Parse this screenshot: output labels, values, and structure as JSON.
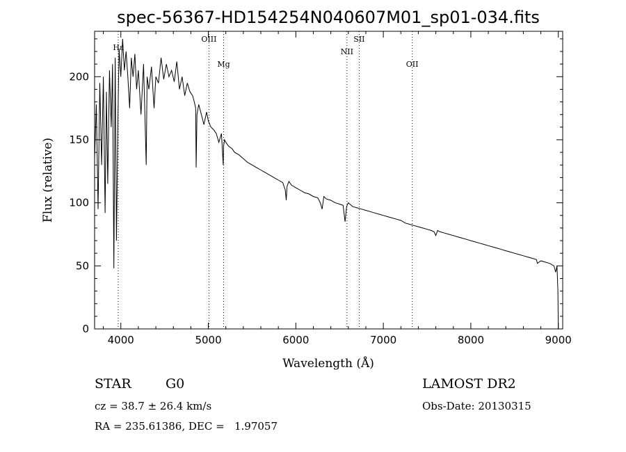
{
  "chart_data": {
    "type": "line",
    "title": "spec-56367-HD154254N040607M01_sp01-034.fits",
    "xlabel": "Wavelength (Å)",
    "ylabel": "Flux (relative)",
    "xlim": [
      3700,
      9050
    ],
    "ylim": [
      0,
      236
    ],
    "x_ticks": [
      4000,
      5000,
      6000,
      7000,
      8000,
      9000
    ],
    "y_ticks": [
      0,
      50,
      100,
      150,
      200
    ],
    "grid": false,
    "series": [
      {
        "x": [
          3700,
          3720,
          3740,
          3760,
          3780,
          3800,
          3820,
          3835,
          3850,
          3870,
          3890,
          3905,
          3920,
          3935,
          3950,
          3968,
          3980,
          4000,
          4020,
          4040,
          4060,
          4080,
          4101,
          4120,
          4140,
          4160,
          4180,
          4200,
          4230,
          4260,
          4290,
          4300,
          4320,
          4350,
          4380,
          4400,
          4430,
          4460,
          4490,
          4520,
          4550,
          4580,
          4610,
          4640,
          4670,
          4700,
          4730,
          4760,
          4790,
          4820,
          4840,
          4855,
          4861,
          4870,
          4890,
          4920,
          4950,
          4980,
          5000,
          5030,
          5060,
          5090,
          5120,
          5150,
          5170,
          5175,
          5185,
          5200,
          5230,
          5270,
          5300,
          5350,
          5400,
          5450,
          5500,
          5550,
          5600,
          5650,
          5700,
          5750,
          5800,
          5850,
          5880,
          5890,
          5900,
          5920,
          5950,
          6000,
          6050,
          6100,
          6150,
          6200,
          6250,
          6280,
          6300,
          6320,
          6350,
          6400,
          6450,
          6500,
          6540,
          6563,
          6580,
          6600,
          6650,
          6700,
          6750,
          6800,
          6850,
          6900,
          6950,
          7000,
          7050,
          7100,
          7150,
          7200,
          7250,
          7300,
          7350,
          7400,
          7450,
          7500,
          7550,
          7580,
          7600,
          7620,
          7650,
          7700,
          7750,
          7800,
          7850,
          7900,
          7950,
          8000,
          8050,
          8100,
          8150,
          8200,
          8250,
          8300,
          8350,
          8400,
          8450,
          8500,
          8550,
          8600,
          8650,
          8700,
          8750,
          8760,
          8800,
          8850,
          8900,
          8950,
          8970,
          8985,
          8995,
          9000
        ],
        "y": [
          135,
          178,
          95,
          195,
          130,
          200,
          92,
          188,
          115,
          205,
          160,
          210,
          48,
          215,
          70,
          172,
          222,
          200,
          230,
          205,
          220,
          200,
          175,
          215,
          200,
          218,
          190,
          205,
          170,
          210,
          130,
          200,
          190,
          208,
          175,
          200,
          195,
          215,
          198,
          210,
          200,
          205,
          196,
          212,
          190,
          200,
          185,
          195,
          188,
          185,
          180,
          175,
          128,
          170,
          178,
          170,
          162,
          172,
          165,
          160,
          158,
          155,
          148,
          155,
          130,
          145,
          150,
          148,
          145,
          143,
          140,
          138,
          135,
          132,
          130,
          128,
          126,
          124,
          122,
          120,
          118,
          116,
          110,
          102,
          113,
          117,
          114,
          112,
          110,
          108,
          107,
          105,
          104,
          100,
          95,
          105,
          103,
          102,
          100,
          99,
          98,
          85,
          97,
          100,
          97,
          96,
          95,
          94,
          93,
          92,
          91,
          90,
          89,
          88,
          87,
          86,
          84,
          83,
          82,
          81,
          80,
          79,
          78,
          77,
          74,
          78,
          77,
          76,
          75,
          74,
          73,
          72,
          71,
          70,
          69,
          68,
          67,
          66,
          65,
          64,
          63,
          62,
          61,
          60,
          59,
          58,
          57,
          56,
          55,
          52,
          54,
          53,
          52,
          50,
          45,
          50,
          30,
          0
        ]
      }
    ],
    "annotations": [
      {
        "label": "Hε",
        "x": 3970
      },
      {
        "label": "OIII",
        "x": 5007
      },
      {
        "label": "Mg",
        "x": 5175
      },
      {
        "label": "NII",
        "x": 6584
      },
      {
        "label": "OII",
        "x": 7330
      },
      {
        "label": "SII",
        "x": 6724
      }
    ]
  },
  "info": {
    "class_label": "STAR",
    "subclass": "G0",
    "survey": "LAMOST DR2",
    "cz": "cz = 38.7 ± 26.4 km/s",
    "obs_date": "Obs-Date: 20130315",
    "coords": "RA = 235.61386, DEC =   1.97057"
  }
}
